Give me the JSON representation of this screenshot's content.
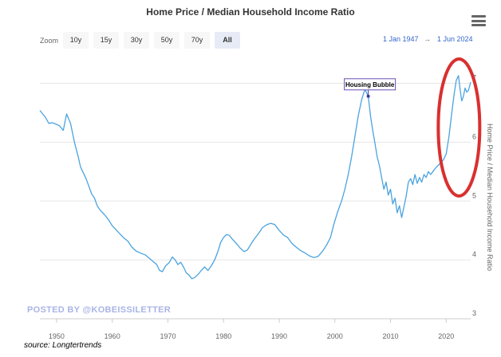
{
  "header": {
    "title": "Home Price / Median Household Income Ratio"
  },
  "toolbar": {
    "zoom_label": "Zoom",
    "buttons": [
      {
        "label": "10y"
      },
      {
        "label": "15y"
      },
      {
        "label": "30y"
      },
      {
        "label": "50y"
      },
      {
        "label": "70y"
      },
      {
        "label": "All",
        "active": true
      }
    ],
    "menu_icon": "hamburger-menu-icon",
    "range_from": "1 Jan 1947",
    "range_arrow": "→",
    "range_to": "1 Jun 2024"
  },
  "watermark": "POSTED BY @KOBEISSILETTER",
  "source": "source: Longtertrends",
  "chart_data": {
    "type": "line",
    "title": "Home Price / Median Household Income Ratio",
    "xlabel": "",
    "ylabel": "Home Price / Median Household Income Ratio",
    "xlim": [
      1947.0,
      2024.4
    ],
    "ylim": [
      3,
      7.4
    ],
    "x_ticks": [
      "1950",
      "1960",
      "1970",
      "1980",
      "1990",
      "2000",
      "2010",
      "2020"
    ],
    "y_ticks": [
      "3",
      "4",
      "5",
      "6",
      "7"
    ],
    "grid": true,
    "line_color": "#4aa3df",
    "annotation": {
      "label": "Housing Bubble",
      "x": 2006.0,
      "y": 6.78
    },
    "highlight_ellipse": {
      "color": "#d93030"
    },
    "series": [
      {
        "x": [
          1947.0,
          1947.5,
          1948.0,
          1948.6,
          1949.2,
          1949.8,
          1950.5,
          1951.2,
          1951.8,
          1952.5,
          1953.2,
          1953.9,
          1954.3,
          1954.8,
          1955.3,
          1955.8,
          1956.3,
          1956.8,
          1957.3,
          1957.8,
          1958.5,
          1959.2,
          1960.0,
          1961.0,
          1962.0,
          1962.8,
          1963.5,
          1964.3,
          1965.0,
          1966.0,
          1967.0,
          1968.0,
          1968.5,
          1969.0,
          1969.6,
          1970.2,
          1970.8,
          1971.3,
          1971.8,
          1972.3,
          1972.8,
          1973.3,
          1973.8,
          1974.3,
          1974.8,
          1975.4,
          1976.0,
          1976.6,
          1977.2,
          1977.8,
          1978.4,
          1979.0,
          1979.5,
          1980.0,
          1980.5,
          1981.0,
          1981.6,
          1982.3,
          1983.0,
          1983.7,
          1984.3,
          1985.0,
          1985.7,
          1986.3,
          1987.0,
          1987.8,
          1988.5,
          1989.2,
          1990.0,
          1990.8,
          1991.5,
          1992.3,
          1993.0,
          1993.8,
          1994.6,
          1995.4,
          1996.2,
          1997.0,
          1997.8,
          1998.5,
          1999.2,
          1999.8,
          2000.5,
          2001.2,
          2001.8,
          2002.4,
          2003.0,
          2003.6,
          2004.2,
          2004.8,
          2005.4,
          2006.0,
          2006.4,
          2006.8,
          2007.2,
          2007.6,
          2008.0,
          2008.4,
          2008.8,
          2009.2,
          2009.6,
          2010.0,
          2010.4,
          2010.8,
          2011.2,
          2011.6,
          2012.0,
          2012.4,
          2012.8,
          2013.2,
          2013.6,
          2014.0,
          2014.4,
          2014.8,
          2015.2,
          2015.6,
          2016.0,
          2016.4,
          2016.8,
          2017.2,
          2017.6,
          2018.0,
          2018.5,
          2019.0,
          2019.5,
          2020.0,
          2020.5,
          2021.0,
          2021.4,
          2021.8,
          2022.2,
          2022.5,
          2022.8,
          2023.1,
          2023.4,
          2023.7,
          2024.0,
          2024.4
        ],
        "values": [
          6.54,
          6.48,
          6.42,
          6.32,
          6.33,
          6.31,
          6.28,
          6.2,
          6.48,
          6.32,
          6.0,
          5.75,
          5.58,
          5.48,
          5.38,
          5.25,
          5.12,
          5.05,
          4.92,
          4.85,
          4.78,
          4.7,
          4.58,
          4.48,
          4.38,
          4.32,
          4.22,
          4.15,
          4.12,
          4.08,
          4.0,
          3.92,
          3.82,
          3.8,
          3.9,
          3.95,
          4.05,
          4.0,
          3.92,
          3.96,
          3.88,
          3.78,
          3.74,
          3.68,
          3.7,
          3.75,
          3.82,
          3.88,
          3.82,
          3.9,
          4.0,
          4.15,
          4.3,
          4.38,
          4.43,
          4.42,
          4.35,
          4.28,
          4.2,
          4.14,
          4.17,
          4.28,
          4.38,
          4.45,
          4.55,
          4.6,
          4.62,
          4.6,
          4.5,
          4.42,
          4.38,
          4.28,
          4.22,
          4.16,
          4.12,
          4.07,
          4.04,
          4.06,
          4.15,
          4.25,
          4.38,
          4.6,
          4.82,
          5.0,
          5.2,
          5.45,
          5.75,
          6.1,
          6.45,
          6.72,
          6.9,
          6.78,
          6.45,
          6.2,
          5.98,
          5.75,
          5.6,
          5.4,
          5.2,
          5.32,
          5.1,
          5.2,
          4.95,
          5.05,
          4.8,
          4.92,
          4.72,
          4.9,
          5.08,
          5.32,
          5.38,
          5.28,
          5.45,
          5.3,
          5.4,
          5.32,
          5.45,
          5.4,
          5.5,
          5.45,
          5.5,
          5.55,
          5.6,
          5.65,
          5.7,
          5.8,
          6.1,
          6.5,
          6.8,
          7.05,
          7.13,
          6.9,
          6.7,
          6.78,
          6.92,
          6.85,
          6.88,
          7.02
        ]
      }
    ]
  }
}
